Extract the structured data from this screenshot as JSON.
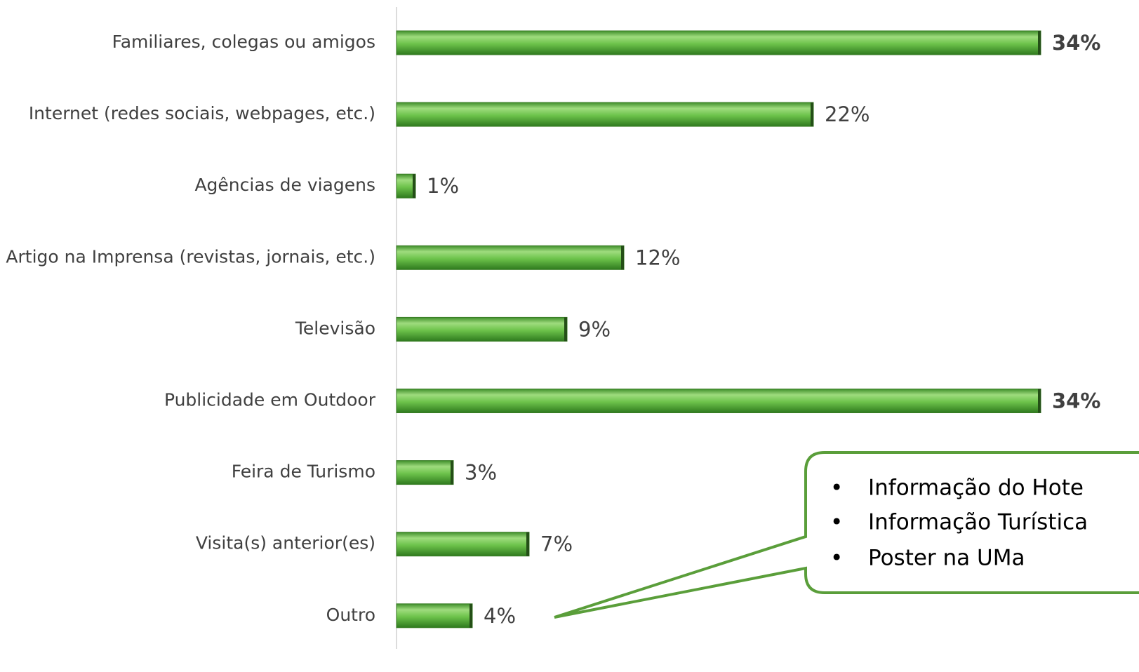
{
  "chart_data": {
    "type": "bar",
    "orientation": "horizontal",
    "categories": [
      "Familiares, colegas ou amigos",
      "Internet (redes sociais, webpages, etc.)",
      "Agências de viagens",
      "Artigo na Imprensa (revistas, jornais, etc.)",
      "Televisão",
      "Publicidade em Outdoor",
      "Feira de Turismo",
      "Visita(s) anterior(es)",
      "Outro"
    ],
    "values": [
      34,
      22,
      1,
      12,
      9,
      34,
      3,
      7,
      4
    ],
    "value_labels": [
      "34%",
      "22%",
      "1%",
      "12%",
      "9%",
      "34%",
      "3%",
      "7%",
      "4%"
    ],
    "color": "#5cb33c",
    "annotation": {
      "items": [
        "Informação do Hote",
        "Informação Turística",
        "Poster na UMa"
      ]
    }
  }
}
